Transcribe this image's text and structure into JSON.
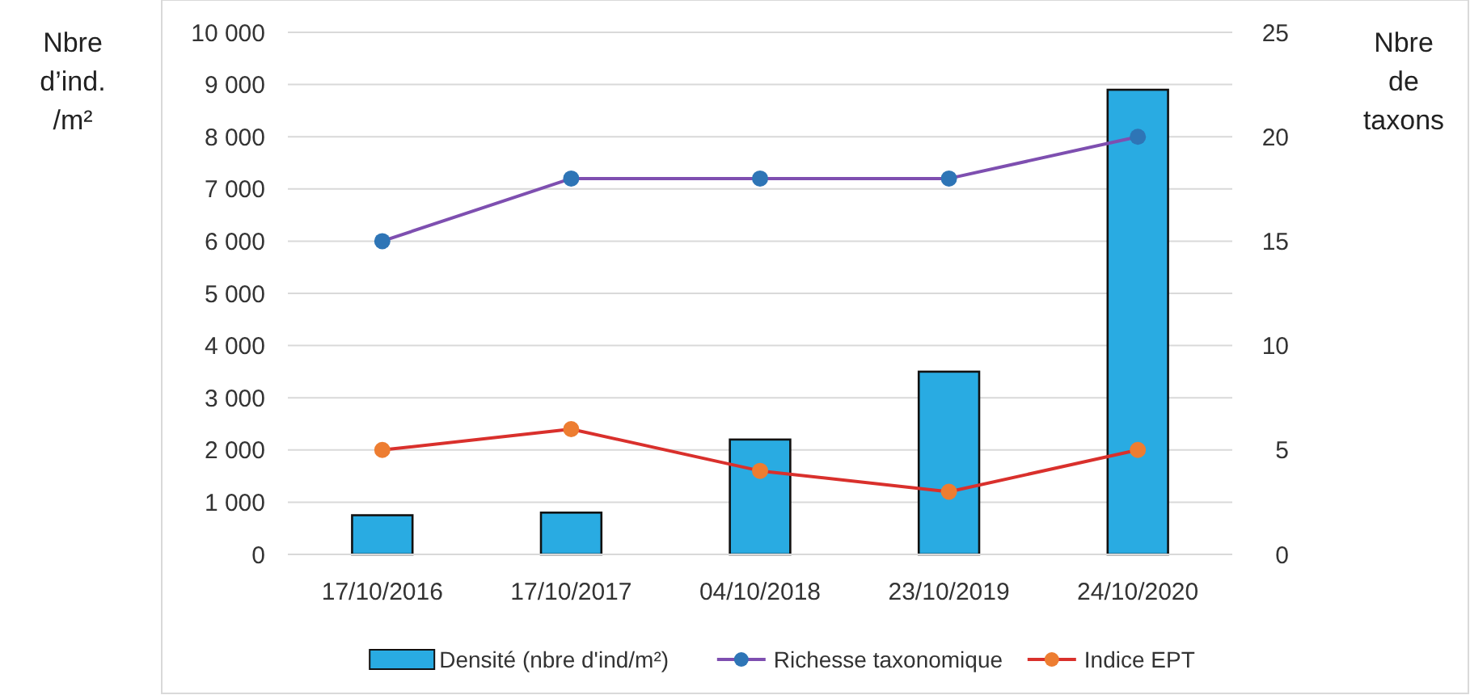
{
  "chart_data": {
    "type": "bar",
    "categories": [
      "17/10/2016",
      "17/10/2017",
      "04/10/2018",
      "23/10/2019",
      "24/10/2020"
    ],
    "ylabel": "Nbre\nd’ind.\n/m²",
    "y2label": "Nbre\nde\ntaxons",
    "ylim": [
      0,
      10000
    ],
    "yticks": [
      0,
      {
        "value": 1000,
        "label": "1 000"
      },
      {
        "value": 2000,
        "label": "2 000"
      },
      {
        "value": 3000,
        "label": "3 000"
      },
      {
        "value": 4000,
        "label": "4 000"
      },
      {
        "value": 5000,
        "label": "5 000"
      },
      {
        "value": 6000,
        "label": "6 000"
      },
      {
        "value": 7000,
        "label": "7 000"
      },
      {
        "value": 8000,
        "label": "8 000"
      },
      {
        "value": 9000,
        "label": "9 000"
      },
      {
        "value": 10000,
        "label": "10 000"
      }
    ],
    "y2lim": [
      0,
      25
    ],
    "y2ticks": [
      0,
      5,
      10,
      15,
      20,
      25
    ],
    "grid": "y",
    "legend": "bottom",
    "series": [
      {
        "name": "Densité (nbre d'ind/m²)",
        "color": "#29abe2",
        "values": [
          750,
          800,
          2200,
          3500,
          8900
        ]
      },
      {
        "name": "Richesse taxonomique",
        "type": "line",
        "axis": "y2",
        "color": "#7e4fb0",
        "colors": [
          "#2e75b6",
          "#2e75b6",
          "#2e75b6",
          "#2e75b6",
          "#2e75b6"
        ],
        "marker": "circle",
        "values": [
          15,
          18,
          18,
          18,
          20
        ]
      },
      {
        "name": "Indice EPT",
        "type": "line",
        "axis": "y2",
        "color": "#d9302c",
        "colors": [
          "#ed7d31",
          "#ed7d31",
          "#ed7d31",
          "#ed7d31",
          "#ed7d31"
        ],
        "marker": "circle",
        "values": [
          5,
          6,
          4,
          3,
          5
        ]
      }
    ]
  }
}
